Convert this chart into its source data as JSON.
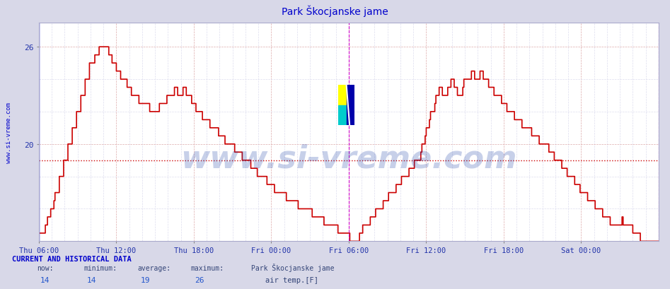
{
  "title": "Park Škocjanske jame",
  "title_color": "#0000cc",
  "background_color": "#d8d8e8",
  "plot_bg_color": "#ffffff",
  "line_color": "#cc0000",
  "line_width": 1.2,
  "ylabel_left": "www.si-vreme.com",
  "yticks": [
    20,
    26
  ],
  "ylim_bottom": 14.0,
  "ylim_top": 27.5,
  "xlim_start": 0,
  "xlim_end": 576,
  "avg_line_y": 19.0,
  "avg_line_color": "#cc0000",
  "vline1_x": 0,
  "vline1_color": "#0000cc",
  "vline2_x": 288,
  "vline2_color": "#cc00cc",
  "vline3_x": 576,
  "vline3_color": "#cc00cc",
  "grid_color_major": "#ddaaaa",
  "grid_color_minor": "#ddddee",
  "xtick_labels": [
    "Thu 06:00",
    "Thu 12:00",
    "Thu 18:00",
    "Fri 00:00",
    "Fri 06:00",
    "Fri 12:00",
    "Fri 18:00",
    "Sat 00:00"
  ],
  "xtick_positions": [
    0,
    72,
    144,
    216,
    288,
    360,
    432,
    504
  ],
  "bottom_text_line1": "CURRENT AND HISTORICAL DATA",
  "bottom_row1": [
    "now:",
    "minimum:",
    "average:",
    "maximum:",
    "Park Škocjanske jame"
  ],
  "bottom_row2": [
    "14",
    "14",
    "19",
    "26",
    "air temp.[F]"
  ],
  "legend_color": "#cc0000",
  "logo_colors": {
    "yellow": "#ffff00",
    "cyan": "#00cccc",
    "blue": "#0000aa"
  },
  "watermark": "www.si-vreme.com",
  "watermark_color": "#2244aa",
  "watermark_alpha": 0.25,
  "watermark_fontsize": 32
}
